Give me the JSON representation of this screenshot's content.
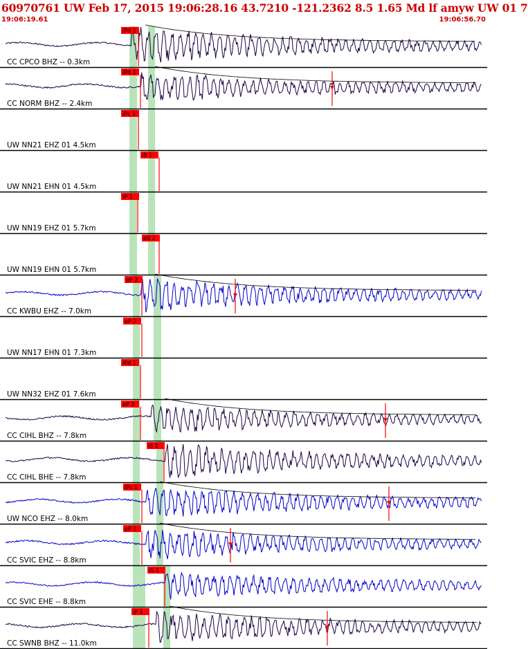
{
  "header": {
    "title": "60970761 UW Feb 17, 2015 19:06:28.16   43.7210 -121.2362  8.5 1.65 Md lf amyw UW 01   7",
    "time_start": "19:06:19.61",
    "time_end": "19:06:56.70"
  },
  "colors": {
    "header_red": "#cc0000",
    "pick_red": "#ff0000",
    "window_green": "#b9e3b9",
    "trace_blue": "#0000cc",
    "trace_dark": "#000055",
    "coda_curve": "#000000"
  },
  "chart_data": {
    "type": "seismogram",
    "time_start_label": "19:06:19.61",
    "time_end_label": "19:06:56.70",
    "traces": [
      {
        "label": "CC CPCO BHZ -- 0.3km",
        "pick": "iPd 1",
        "has_data": true,
        "color": "#1a0044",
        "amp": 1.0,
        "onset": 0.27,
        "coda": true
      },
      {
        "label": "CC NORM BHZ -- 2.4km",
        "pick": "iPd 1",
        "has_data": true,
        "color": "#1a0044",
        "amp": 0.8,
        "onset": 0.29,
        "coda": true
      },
      {
        "label": "UW NN21 EHZ 01 4.5km",
        "pick": "iPc 1",
        "has_data": false
      },
      {
        "label": "UW NN21 EHN 01 4.5km",
        "pick": "iS 1",
        "has_data": false
      },
      {
        "label": "UW NN19 EHZ 01 5.7km",
        "pick": "iP 1",
        "has_data": false
      },
      {
        "label": "UW NN19 EHN 01 5.7km",
        "pick": "eS 2",
        "has_data": false
      },
      {
        "label": "CC KWBU EHZ -- 7.0km",
        "pick": "eP 2",
        "has_data": true,
        "color": "#0000cc",
        "amp": 0.9,
        "onset": 0.29,
        "coda": true
      },
      {
        "label": "UW NN17 EHN 01 7.3km",
        "pick": "eP 2",
        "has_data": false
      },
      {
        "label": "UW NN32 EHZ 01 7.6km",
        "pick": "iPd 1",
        "has_data": false
      },
      {
        "label": "CC CIHL BHZ -- 7.8km",
        "pick": "eP 2",
        "has_data": true,
        "color": "#1a0044",
        "amp": 0.75,
        "onset": 0.31,
        "coda": true
      },
      {
        "label": "CC CIHL BHE -- 7.8km",
        "pick": "iS 1",
        "has_data": true,
        "color": "#1a0044",
        "amp": 0.95,
        "onset": 0.34,
        "coda": false
      },
      {
        "label": "UW NCO EHZ -- 8.0km",
        "pick": "iPc 1",
        "has_data": true,
        "color": "#0000cc",
        "amp": 0.9,
        "onset": 0.3,
        "coda": true
      },
      {
        "label": "CC SVIC EHZ -- 8.8km",
        "pick": "eP 2",
        "has_data": true,
        "color": "#0000cc",
        "amp": 0.85,
        "onset": 0.3,
        "coda": true
      },
      {
        "label": "CC SVIC EHE -- 8.8km",
        "pick": "iS 1",
        "has_data": true,
        "color": "#0000cc",
        "amp": 0.7,
        "onset": 0.34,
        "coda": false
      },
      {
        "label": "CC SWNB BHZ -- 11.0km",
        "pick": "iP 1",
        "has_data": true,
        "color": "#1a0044",
        "amp": 0.9,
        "onset": 0.32,
        "coda": true
      }
    ]
  }
}
